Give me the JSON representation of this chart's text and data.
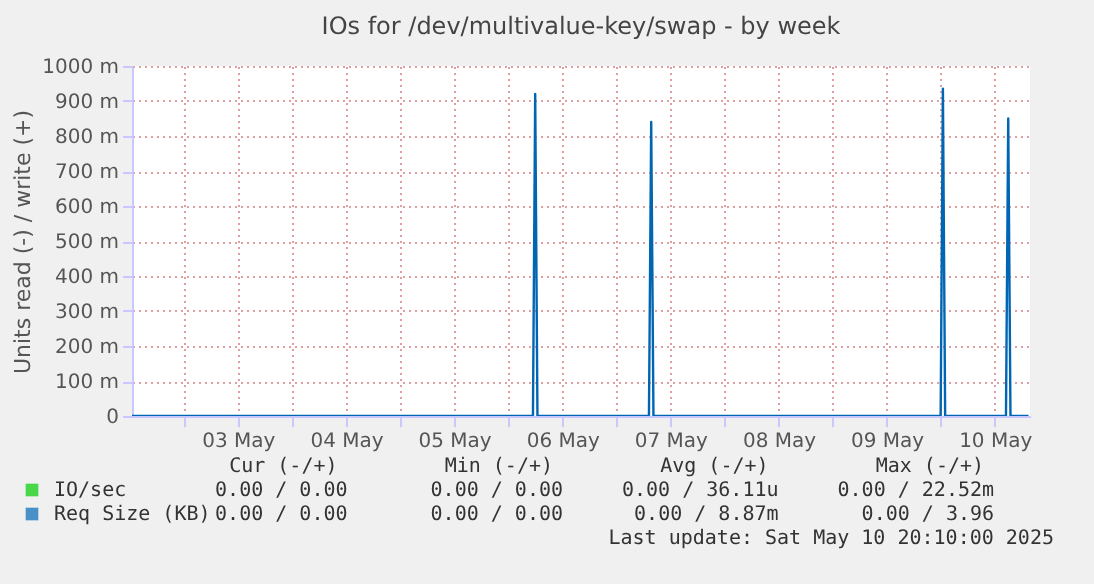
{
  "chart_data": {
    "type": "line",
    "title": "IOs for /dev/multivalue-key/swap - by week",
    "ylabel": "Units read (-) / write (+)",
    "xlim": [
      "2025-05-02T12:30",
      "2025-05-10T19:50"
    ],
    "xticks": [
      {
        "value": "2025-05-03T00:00",
        "label": null
      },
      {
        "value": "2025-05-03T12:00",
        "label": "03 May"
      },
      {
        "value": "2025-05-04T00:00",
        "label": null
      },
      {
        "value": "2025-05-04T12:00",
        "label": "04 May"
      },
      {
        "value": "2025-05-05T00:00",
        "label": null
      },
      {
        "value": "2025-05-05T12:00",
        "label": "05 May"
      },
      {
        "value": "2025-05-06T00:00",
        "label": null
      },
      {
        "value": "2025-05-06T12:00",
        "label": "06 May"
      },
      {
        "value": "2025-05-07T00:00",
        "label": null
      },
      {
        "value": "2025-05-07T12:00",
        "label": "07 May"
      },
      {
        "value": "2025-05-08T00:00",
        "label": null
      },
      {
        "value": "2025-05-08T12:00",
        "label": "08 May"
      },
      {
        "value": "2025-05-09T00:00",
        "label": null
      },
      {
        "value": "2025-05-09T12:00",
        "label": "09 May"
      },
      {
        "value": "2025-05-10T00:00",
        "label": null
      },
      {
        "value": "2025-05-10T12:00",
        "label": "10 May"
      }
    ],
    "ylim": [
      0,
      1000
    ],
    "yticks": [
      0,
      {
        "value": 100,
        "label": "100 m"
      },
      {
        "value": 200,
        "label": "200 m"
      },
      {
        "value": 300,
        "label": "300 m"
      },
      {
        "value": 400,
        "label": "400 m"
      },
      {
        "value": 500,
        "label": "500 m"
      },
      {
        "value": 600,
        "label": "600 m"
      },
      {
        "value": 700,
        "label": "700 m"
      },
      {
        "value": 800,
        "label": "800 m"
      },
      {
        "value": 900,
        "label": "900 m"
      },
      {
        "value": 1000,
        "label": "1000 m"
      }
    ],
    "grid": true,
    "legend": "bottom",
    "series": [
      {
        "name": "IO/sec",
        "color": "#00cc00"
      },
      {
        "name": "Req Size (KB)",
        "color": "#0066b3",
        "x": [
          "2025-05-02T12:30",
          "2025-05-06T05:30",
          "2025-05-06T06:00",
          "2025-05-06T06:30",
          "2025-05-07T07:15",
          "2025-05-07T07:45",
          "2025-05-07T08:15",
          "2025-05-10T00:00",
          "2025-05-10T00:30",
          "2025-05-10T01:00",
          "2025-05-10T14:30",
          "2025-05-10T15:00",
          "2025-05-10T15:30",
          "2025-05-10T19:30"
        ],
        "values": [
          0,
          0,
          920,
          0,
          0,
          840,
          0,
          0,
          935,
          0,
          0,
          850,
          0,
          0
        ]
      }
    ],
    "annotations": [
      "Cur (-/+)",
      "Min (-/+)",
      "Avg (-/+)",
      "Max (-/+)",
      "0.00 /  0.00",
      "0.00 /  0.00",
      "0.00 / 36.11u",
      "0.00 / 22.52m",
      "0.00 /  0.00",
      "0.00 /  0.00",
      "0.00 /  8.87m",
      "0.00 /  3.96",
      "Last update: Sat May 10 20:10:00 2025"
    ]
  }
}
